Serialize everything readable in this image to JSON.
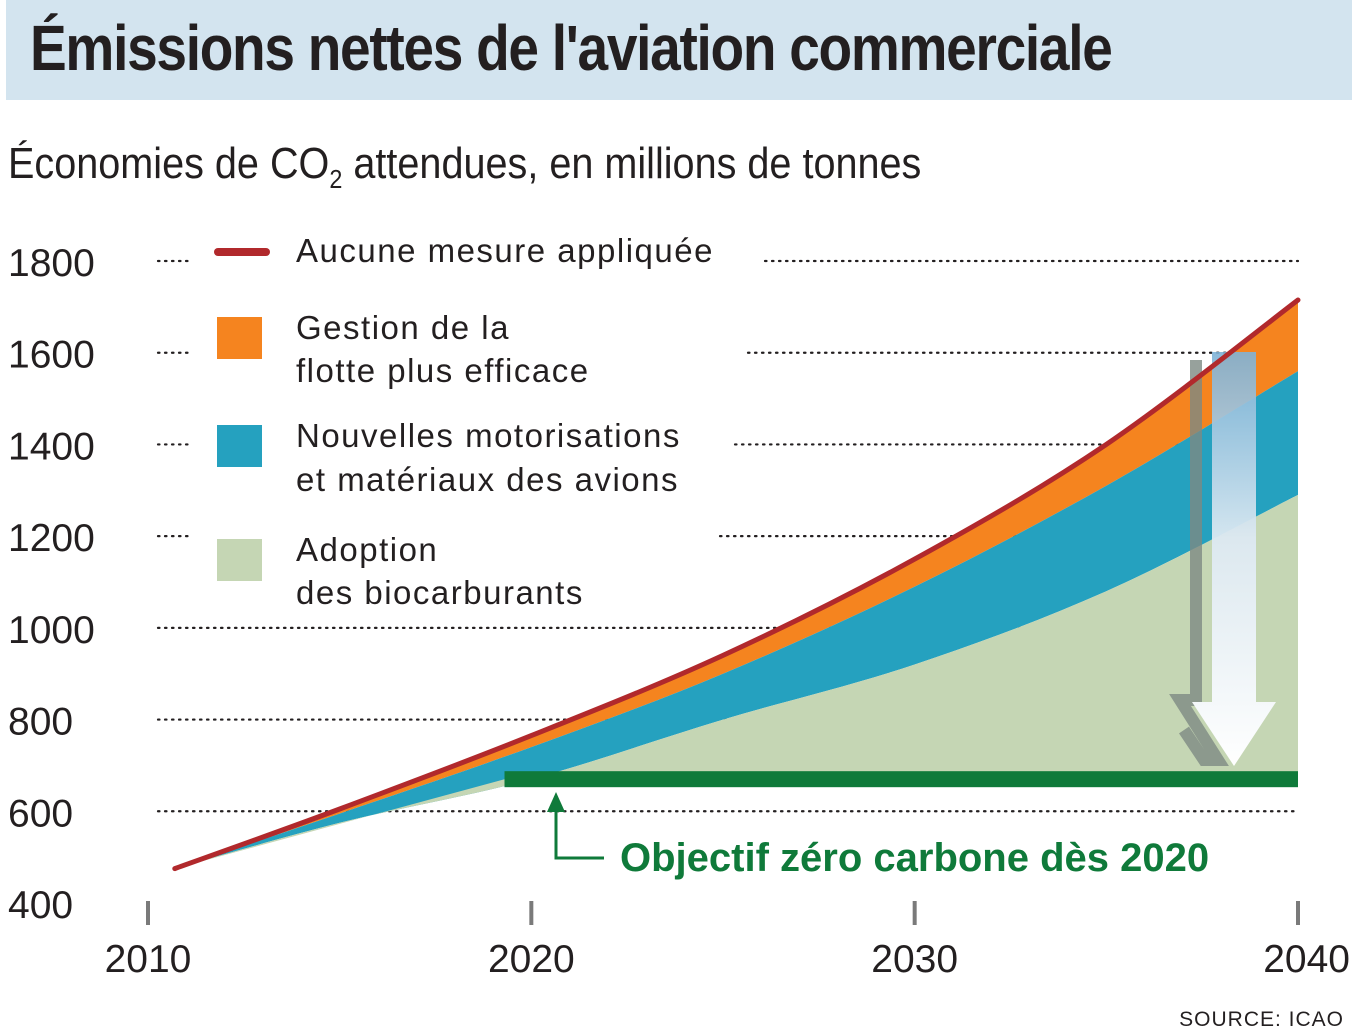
{
  "header": {
    "title": "Émissions nettes de l'aviation commerciale",
    "subtitle_pre": "Économies de CO",
    "subtitle_sub": "2",
    "subtitle_post": " attendues, en millions de tonnes"
  },
  "source": "SOURCE: ICAO",
  "colors": {
    "no_measures": "#b1292c",
    "fleet": "#f5841f",
    "engines": "#25a1bf",
    "biofuel": "#c5d6b4",
    "target": "#0f7a3a",
    "title_band": "#d3e4ef"
  },
  "chart_data": {
    "type": "area",
    "x_ticks": [
      2010,
      2020,
      2030,
      2040
    ],
    "y_ticks": [
      400,
      600,
      800,
      1000,
      1200,
      1400,
      1600,
      1800
    ],
    "xlim": [
      2010,
      2040
    ],
    "ylim": [
      400,
      1800
    ],
    "grid": "dotted horizontal",
    "legend_placement": "top-left",
    "x": [
      2010.7,
      2015,
      2020,
      2025,
      2030,
      2035,
      2040
    ],
    "series": [
      {
        "name": "Aucune mesure appliquée",
        "kind": "line",
        "values": [
          475,
          605,
          765,
          940,
          1150,
          1400,
          1715
        ]
      },
      {
        "name": "Gestion de la flotte plus efficace",
        "kind": "band",
        "upper": [
          475,
          605,
          765,
          940,
          1150,
          1400,
          1715
        ],
        "lower": [
          475,
          595,
          740,
          900,
          1090,
          1310,
          1560
        ]
      },
      {
        "name": "Nouvelles motorisations et matériaux des avions",
        "kind": "band",
        "upper": [
          475,
          595,
          740,
          900,
          1090,
          1310,
          1560
        ],
        "lower": [
          475,
          575,
          670,
          800,
          920,
          1080,
          1290
        ]
      },
      {
        "name": "Adoption des biocarburants",
        "kind": "band",
        "upper": [
          475,
          575,
          670,
          800,
          920,
          1080,
          1290
        ],
        "lower": [
          475,
          575,
          670,
          670,
          670,
          670,
          670
        ]
      }
    ],
    "target": {
      "label": "Objectif zéro carbone dès 2020",
      "value": 670,
      "from": 2019.3,
      "to": 2040
    },
    "legend": [
      {
        "label_lines": [
          "Aucune mesure appliquée"
        ],
        "swatch": "line"
      },
      {
        "label_lines": [
          "Gestion de la",
          "flotte plus efficace"
        ],
        "swatch": "box"
      },
      {
        "label_lines": [
          "Nouvelles motorisations",
          "et matériaux des avions"
        ],
        "swatch": "box"
      },
      {
        "label_lines": [
          "Adoption",
          "des biocarburants"
        ],
        "swatch": "box"
      }
    ]
  }
}
